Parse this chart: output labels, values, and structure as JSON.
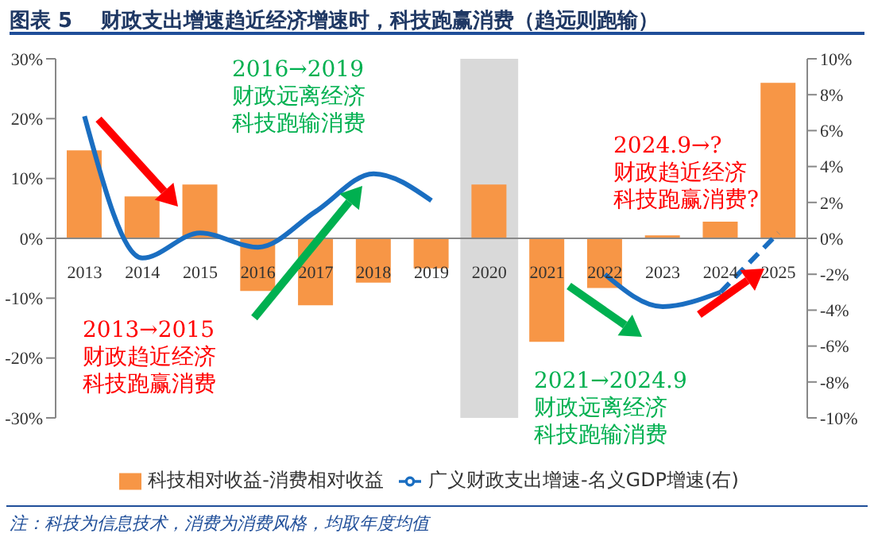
{
  "chart_data": {
    "type": "bar",
    "title": "图表 5    财政支出增速趋近经济增速时，科技跑赢消费（趋远则跑输）",
    "categories": [
      "2013",
      "2014",
      "2015",
      "2016",
      "2017",
      "2018",
      "2019",
      "2020",
      "2021",
      "2022",
      "2023",
      "2024",
      "2025"
    ],
    "series": [
      {
        "name": "科技相对收益-消费相对收益",
        "color": "#f79646",
        "values": [
          14.7,
          7,
          9,
          -8.8,
          -11.2,
          -7.4,
          -5,
          9,
          -17.3,
          -8.3,
          0.5,
          2.8,
          26
        ]
      },
      {
        "name": "广义财政支出增速-名义GDP增速(右)",
        "type": "line",
        "axis": "y2",
        "color": "#1a6ec1",
        "line_style": "solid",
        "values": [
          6.8,
          -1.1,
          0.3,
          -0.5,
          1.5,
          3.6,
          2.1,
          null,
          null,
          -2,
          -3.8,
          -3,
          null
        ]
      },
      {
        "type": "line",
        "axis": "y2",
        "color": "#1a6ec1",
        "line_style": "dashed",
        "values": [
          null,
          null,
          null,
          null,
          null,
          null,
          null,
          null,
          null,
          null,
          null,
          -3,
          0.3
        ]
      }
    ],
    "ylim": [
      -30,
      30
    ],
    "yticks": [
      {
        "value": -30,
        "label": "-30%"
      },
      {
        "value": -20,
        "label": "-20%"
      },
      {
        "value": -10,
        "label": "-10%"
      },
      {
        "value": 0,
        "label": "0%"
      },
      {
        "value": 10,
        "label": "10%"
      },
      {
        "value": 20,
        "label": "20%"
      },
      {
        "value": 30,
        "label": "30%"
      }
    ],
    "y2lim": [
      -10,
      10
    ],
    "y2ticks": [
      {
        "value": -10,
        "label": "-10%"
      },
      {
        "value": -8,
        "label": "-8%"
      },
      {
        "value": -6,
        "label": "-6%"
      },
      {
        "value": -4,
        "label": "-4%"
      },
      {
        "value": -2,
        "label": "-2%"
      },
      {
        "value": 0,
        "label": "0%"
      },
      {
        "value": 2,
        "label": "2%"
      },
      {
        "value": 4,
        "label": "4%"
      },
      {
        "value": 6,
        "label": "6%"
      },
      {
        "value": 8,
        "label": "8%"
      },
      {
        "value": 10,
        "label": "10%"
      }
    ],
    "bands": [
      {
        "axis": "x",
        "from": "2020",
        "to": "2020",
        "color": "#d9d9d9"
      }
    ],
    "grid": false,
    "legend": "bottom",
    "annotations": [
      "2013→2015",
      "财政趋近经济",
      "科技跑赢消费",
      "2016→2019",
      "财政远离经济",
      "科技跑输消费",
      "2021→2024.9",
      "财政远离经济",
      "科技跑输消费",
      "2024.9→?",
      "财政趋近经济",
      "科技跑赢消费?",
      "注：科技为信息技术，消费为消费风格，均取年度均值"
    ]
  }
}
